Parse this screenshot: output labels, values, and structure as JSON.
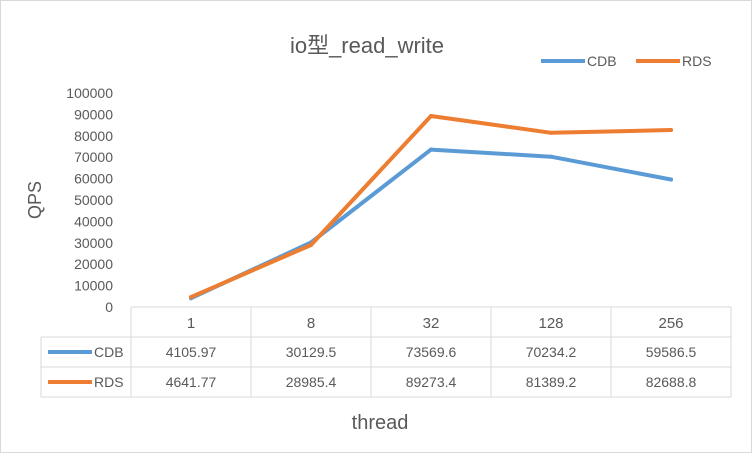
{
  "chart_data": {
    "type": "line",
    "title": "io型_read_write",
    "xlabel": "thread",
    "ylabel": "QPS",
    "categories": [
      "1",
      "8",
      "32",
      "128",
      "256"
    ],
    "ylim": [
      0,
      100000
    ],
    "yticks": [
      "0",
      "10000",
      "20000",
      "30000",
      "40000",
      "50000",
      "60000",
      "70000",
      "80000",
      "90000",
      "100000"
    ],
    "legend_position": "top-right",
    "data_table": true,
    "series": [
      {
        "name": "CDB",
        "color": "#5b9bd5",
        "values": [
          4105.97,
          30129.5,
          73569.6,
          70234.2,
          59586.5
        ],
        "labels": [
          "4105.97",
          "30129.5",
          "73569.6",
          "70234.2",
          "59586.5"
        ]
      },
      {
        "name": "RDS",
        "color": "#ed7d31",
        "values": [
          4641.77,
          28985.4,
          89273.4,
          81389.2,
          82688.8
        ],
        "labels": [
          "4641.77",
          "28985.4",
          "89273.4",
          "81389.2",
          "82688.8"
        ]
      }
    ]
  }
}
